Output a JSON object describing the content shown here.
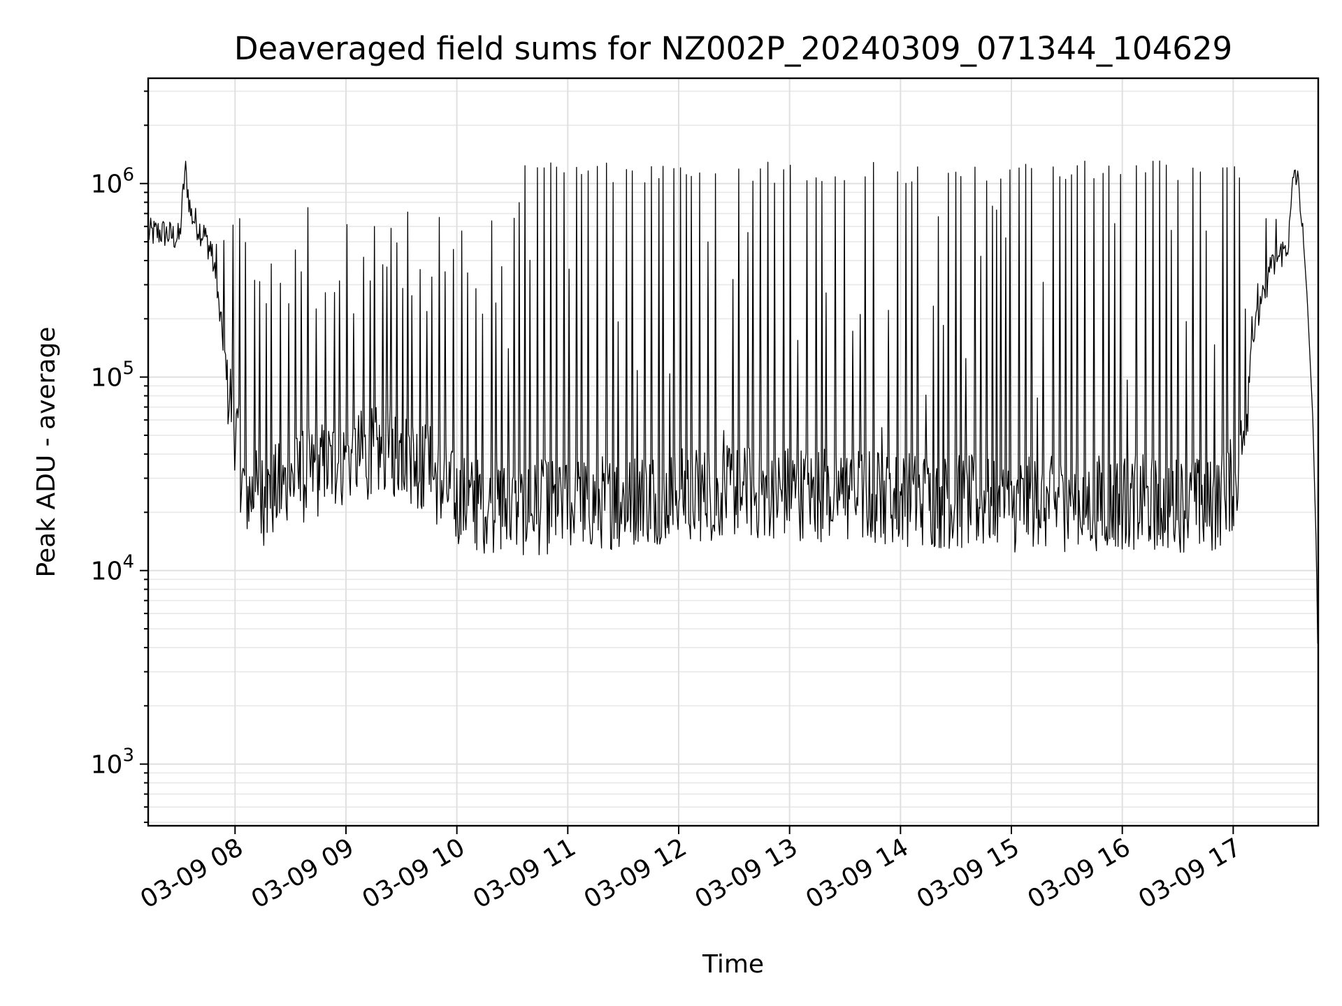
{
  "chart_data": {
    "type": "line",
    "title": "Deaveraged field sums for NZ002P_20240309_071344_104629",
    "xlabel": "Time",
    "ylabel": "Peak ADU - average",
    "yscale": "log",
    "ylim": [
      480,
      3500000
    ],
    "xlim": [
      "2024-03-09 07:13",
      "2024-03-09 17:46"
    ],
    "grid": true,
    "x_ticks": [
      {
        "t": "2024-03-09 08:00",
        "label": "03-09 08"
      },
      {
        "t": "2024-03-09 09:00",
        "label": "03-09 09"
      },
      {
        "t": "2024-03-09 10:00",
        "label": "03-09 10"
      },
      {
        "t": "2024-03-09 11:00",
        "label": "03-09 11"
      },
      {
        "t": "2024-03-09 12:00",
        "label": "03-09 12"
      },
      {
        "t": "2024-03-09 13:00",
        "label": "03-09 13"
      },
      {
        "t": "2024-03-09 14:00",
        "label": "03-09 14"
      },
      {
        "t": "2024-03-09 15:00",
        "label": "03-09 15"
      },
      {
        "t": "2024-03-09 16:00",
        "label": "03-09 16"
      },
      {
        "t": "2024-03-09 17:00",
        "label": "03-09 17"
      }
    ],
    "y_ticks": [
      {
        "value": 1000,
        "base": "10",
        "exp": "3"
      },
      {
        "value": 10000,
        "base": "10",
        "exp": "4"
      },
      {
        "value": 100000,
        "base": "10",
        "exp": "5"
      },
      {
        "value": 1000000,
        "base": "10",
        "exp": "6"
      }
    ],
    "series": [
      {
        "color": "#000000",
        "x": [
          "2024-03-09 07:13",
          "2024-03-09 07:20",
          "2024-03-09 07:25",
          "2024-03-09 07:30",
          "2024-03-09 07:33",
          "2024-03-09 07:36",
          "2024-03-09 07:40",
          "2024-03-09 07:45",
          "2024-03-09 07:48",
          "2024-03-09 07:52",
          "2024-03-09 07:56",
          "2024-03-09 08:00",
          "2024-03-09 08:05",
          "2024-03-09 08:15",
          "2024-03-09 08:30",
          "2024-03-09 08:45",
          "2024-03-09 09:00",
          "2024-03-09 09:15",
          "2024-03-09 09:30",
          "2024-03-09 09:45",
          "2024-03-09 10:00",
          "2024-03-09 10:30",
          "2024-03-09 11:00",
          "2024-03-09 12:00",
          "2024-03-09 13:00",
          "2024-03-09 14:00",
          "2024-03-09 15:00",
          "2024-03-09 16:00",
          "2024-03-09 16:50",
          "2024-03-09 17:00",
          "2024-03-09 17:05",
          "2024-03-09 17:10",
          "2024-03-09 17:20",
          "2024-03-09 17:30",
          "2024-03-09 17:33",
          "2024-03-09 17:36",
          "2024-03-09 17:40",
          "2024-03-09 17:43",
          "2024-03-09 17:45",
          "2024-03-09 17:46"
        ],
        "y": [
          550000,
          560000,
          540000,
          520000,
          1200000,
          700000,
          600000,
          500000,
          400000,
          200000,
          100000,
          60000,
          27000,
          25000,
          30000,
          35000,
          40000,
          42000,
          45000,
          35000,
          24000,
          22000,
          23000,
          26000,
          27000,
          25000,
          23000,
          24000,
          23000,
          30000,
          45000,
          150000,
          350000,
          500000,
          1200000,
          900000,
          250000,
          60000,
          12000,
          2500
        ],
        "spikes": {
          "period_minutes_min": 2,
          "period_minutes_max": 5,
          "peak_high": 1150000,
          "peak_window_start": "2024-03-09 10:25",
          "peak_window_end": "2024-03-09 17:05",
          "early_peak_range": [
            200000,
            800000
          ],
          "noise_floor_range": [
            15000,
            45000
          ]
        }
      }
    ]
  }
}
